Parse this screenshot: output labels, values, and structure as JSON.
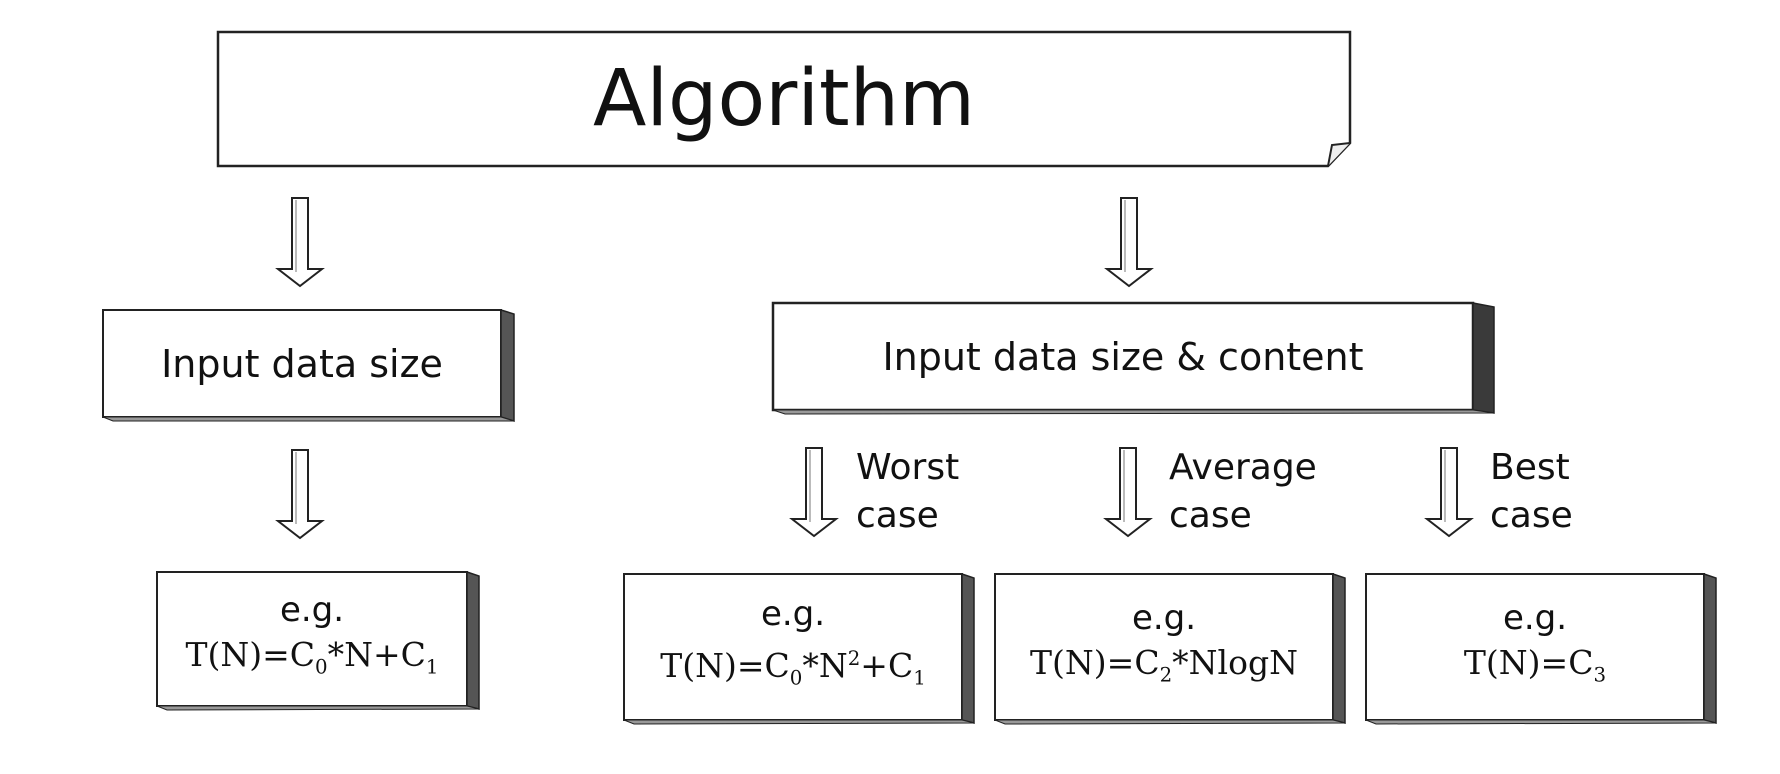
{
  "title": "Algorithm",
  "left_branch": {
    "label": "Input data size",
    "example": {
      "prefix": "e.g.",
      "formula_parts": [
        "T(N)=C",
        "0",
        "*N+C",
        "1"
      ]
    }
  },
  "right_branch": {
    "label": "Input data size & content",
    "cases": [
      {
        "label_line1": "Worst",
        "label_line2": "case",
        "example_prefix": "e.g.",
        "formula_parts": [
          "T(N)=C",
          "0",
          "*N",
          "2",
          "+C",
          "1"
        ]
      },
      {
        "label_line1": "Average",
        "label_line2": "case",
        "example_prefix": "e.g.",
        "formula_parts": [
          "T(N)=C",
          "2",
          "*NlogN"
        ]
      },
      {
        "label_line1": "Best",
        "label_line2": "case",
        "example_prefix": "e.g.",
        "formula_parts": [
          "T(N)=C",
          "3"
        ]
      }
    ]
  }
}
